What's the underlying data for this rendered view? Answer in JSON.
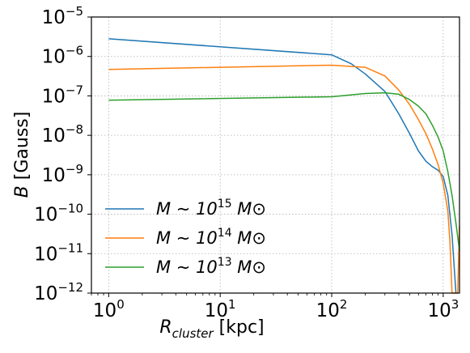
{
  "chart_data": {
    "type": "line",
    "xscale": "log",
    "yscale": "log",
    "xlim": [
      0.7,
      1400
    ],
    "ylim": [
      1e-12,
      1e-05
    ],
    "grid": true,
    "legend_placement": "lower-left",
    "xlabel": {
      "main": "R",
      "sub": "cluster",
      "unit": " [kpc]"
    },
    "ylabel": {
      "main": "B",
      "unit": " [Gauss]"
    },
    "x_ticks": [
      {
        "value": 1,
        "base": "10",
        "exp": "0"
      },
      {
        "value": 10,
        "base": "10",
        "exp": "1"
      },
      {
        "value": 100,
        "base": "10",
        "exp": "2"
      },
      {
        "value": 1000,
        "base": "10",
        "exp": "3"
      }
    ],
    "y_ticks": [
      {
        "value": 1e-12,
        "base": "10",
        "exp": "−12"
      },
      {
        "value": 1e-11,
        "base": "10",
        "exp": "−11"
      },
      {
        "value": 1e-10,
        "base": "10",
        "exp": "−10"
      },
      {
        "value": 1e-09,
        "base": "10",
        "exp": "−9"
      },
      {
        "value": 1e-08,
        "base": "10",
        "exp": "−8"
      },
      {
        "value": 1e-07,
        "base": "10",
        "exp": "−7"
      },
      {
        "value": 1e-06,
        "base": "10",
        "exp": "−6"
      },
      {
        "value": 1e-05,
        "base": "10",
        "exp": "−5"
      }
    ],
    "series": [
      {
        "name": "M ∼ 10^15 M⊙",
        "legend": {
          "pre": "M ∼ 10",
          "exp": "15",
          "post": " M⊙"
        },
        "color": "#1f77b4",
        "x": [
          1,
          100,
          150,
          200,
          300,
          400,
          500,
          600,
          700,
          800,
          900,
          1000,
          1100,
          1200,
          1300
        ],
        "y": [
          2.8e-06,
          1.1e-06,
          6.5e-07,
          3.6e-07,
          1.3e-07,
          3.5e-08,
          1.1e-08,
          4e-09,
          2.2e-09,
          1.6e-09,
          1.3e-09,
          9e-10,
          3e-10,
          3e-11,
          1e-12
        ]
      },
      {
        "name": "M ∼ 10^14 M⊙",
        "legend": {
          "pre": "M ∼ 10",
          "exp": "14",
          "post": " M⊙"
        },
        "color": "#ff7f0e",
        "x": [
          1,
          100,
          200,
          300,
          400,
          500,
          600,
          700,
          800,
          900,
          1000,
          1100,
          1150,
          1200,
          1250,
          1300,
          1350,
          1400
        ],
        "y": [
          4.7e-07,
          6e-07,
          5.3e-07,
          3.2e-07,
          1.4e-07,
          6e-08,
          2.5e-08,
          1.1e-08,
          4.5e-09,
          1.8e-09,
          6e-10,
          1.2e-10,
          2e-11,
          1e-12,
          1e-12,
          1e-12,
          1e-12,
          5e-11
        ]
      },
      {
        "name": "M ∼ 10^13 M⊙",
        "legend": {
          "pre": "M ∼ 10",
          "exp": "13",
          "post": " M⊙"
        },
        "color": "#2ca02c",
        "x": [
          1,
          100,
          200,
          300,
          400,
          500,
          600,
          700,
          800,
          900,
          1000,
          1100,
          1200,
          1300,
          1400
        ],
        "y": [
          7.8e-08,
          9.5e-08,
          1.15e-07,
          1.2e-07,
          1.1e-07,
          8e-08,
          5.5e-08,
          3.5e-08,
          1.8e-08,
          9e-09,
          4e-09,
          1.2e-09,
          3e-10,
          6e-11,
          1.2e-11
        ]
      }
    ]
  }
}
